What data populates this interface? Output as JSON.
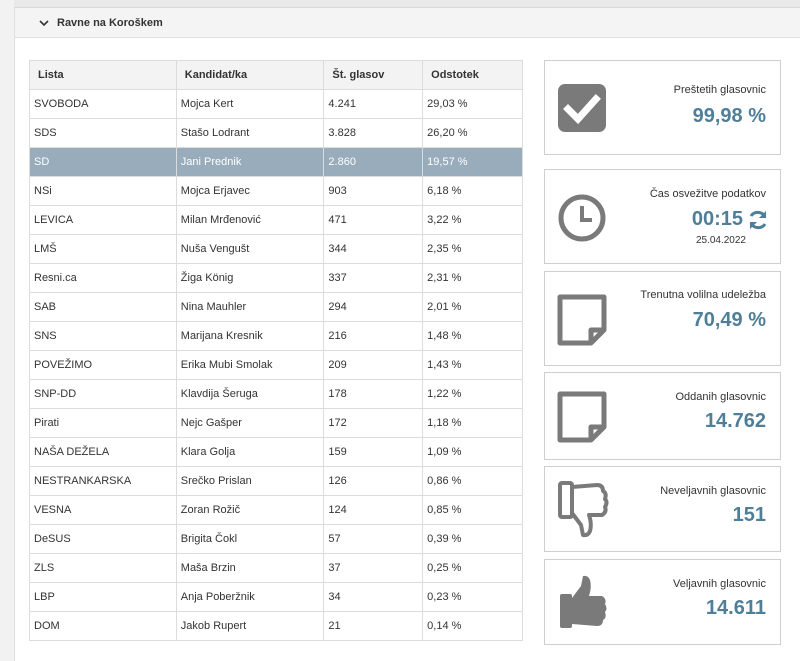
{
  "header": {
    "title": "Ravne na Koroškem"
  },
  "table": {
    "columns": [
      "Lista",
      "Kandidat/ka",
      "Št. glasov",
      "Odstotek"
    ],
    "rows": [
      [
        "SVOBODA",
        "Mojca Kert",
        "4.241",
        "29,03 %"
      ],
      [
        "SDS",
        "Stašo Lodrant",
        "3.828",
        "26,20 %"
      ],
      [
        "SD",
        "Jani Prednik",
        "2.860",
        "19,57 %"
      ],
      [
        "NSi",
        "Mojca Erjavec",
        "903",
        "6,18 %"
      ],
      [
        "LEVICA",
        "Milan Mrđenović",
        "471",
        "3,22 %"
      ],
      [
        "LMŠ",
        "Nuša Vengušt",
        "344",
        "2,35 %"
      ],
      [
        "Resni.ca",
        "Žiga König",
        "337",
        "2,31 %"
      ],
      [
        "SAB",
        "Nina Mauhler",
        "294",
        "2,01 %"
      ],
      [
        "SNS",
        "Marijana Kresnik",
        "216",
        "1,48 %"
      ],
      [
        "POVEŽIMO",
        "Erika Mubi Smolak",
        "209",
        "1,43 %"
      ],
      [
        "SNP-DD",
        "Klavdija Šeruga",
        "178",
        "1,22 %"
      ],
      [
        "Pirati",
        "Nejc Gašper",
        "172",
        "1,18 %"
      ],
      [
        "NAŠA DEŽELA",
        "Klara Golja",
        "159",
        "1,09 %"
      ],
      [
        "NESTRANKARSKA",
        "Srečko Prislan",
        "126",
        "0,86 %"
      ],
      [
        "VESNA",
        "Zoran Rožič",
        "124",
        "0,85 %"
      ],
      [
        "DeSUS",
        "Brigita Čokl",
        "57",
        "0,39 %"
      ],
      [
        "ZLS",
        "Maša Brzin",
        "37",
        "0,25 %"
      ],
      [
        "LBP",
        "Anja Poberžnik",
        "34",
        "0,23 %"
      ],
      [
        "DOM",
        "Jakob Rupert",
        "21",
        "0,14 %"
      ]
    ],
    "highlighted_row": 2
  },
  "cards": {
    "counted": {
      "label": "Preštetih glasovnic",
      "value": "99,98 %",
      "icon": "checkbox-icon"
    },
    "refresh": {
      "label": "Čas osvežitve podatkov",
      "value": "00:15",
      "date": "25.04.2022",
      "icon": "clock-icon"
    },
    "turnout": {
      "label": "Trenutna volilna udeležba",
      "value": "70,49 %",
      "icon": "note-icon"
    },
    "cast": {
      "label": "Oddanih glasovnic",
      "value": "14.762",
      "icon": "note-icon"
    },
    "invalid": {
      "label": "Neveljavnih glasovnic",
      "value": "151",
      "icon": "thumbs-down-icon"
    },
    "valid": {
      "label": "Veljavnih glasovnic",
      "value": "14.611",
      "icon": "thumbs-up-icon"
    }
  },
  "colors": {
    "accent": "#4f7f98",
    "highlight": "#98acbc",
    "icon": "#7a7a7a"
  }
}
